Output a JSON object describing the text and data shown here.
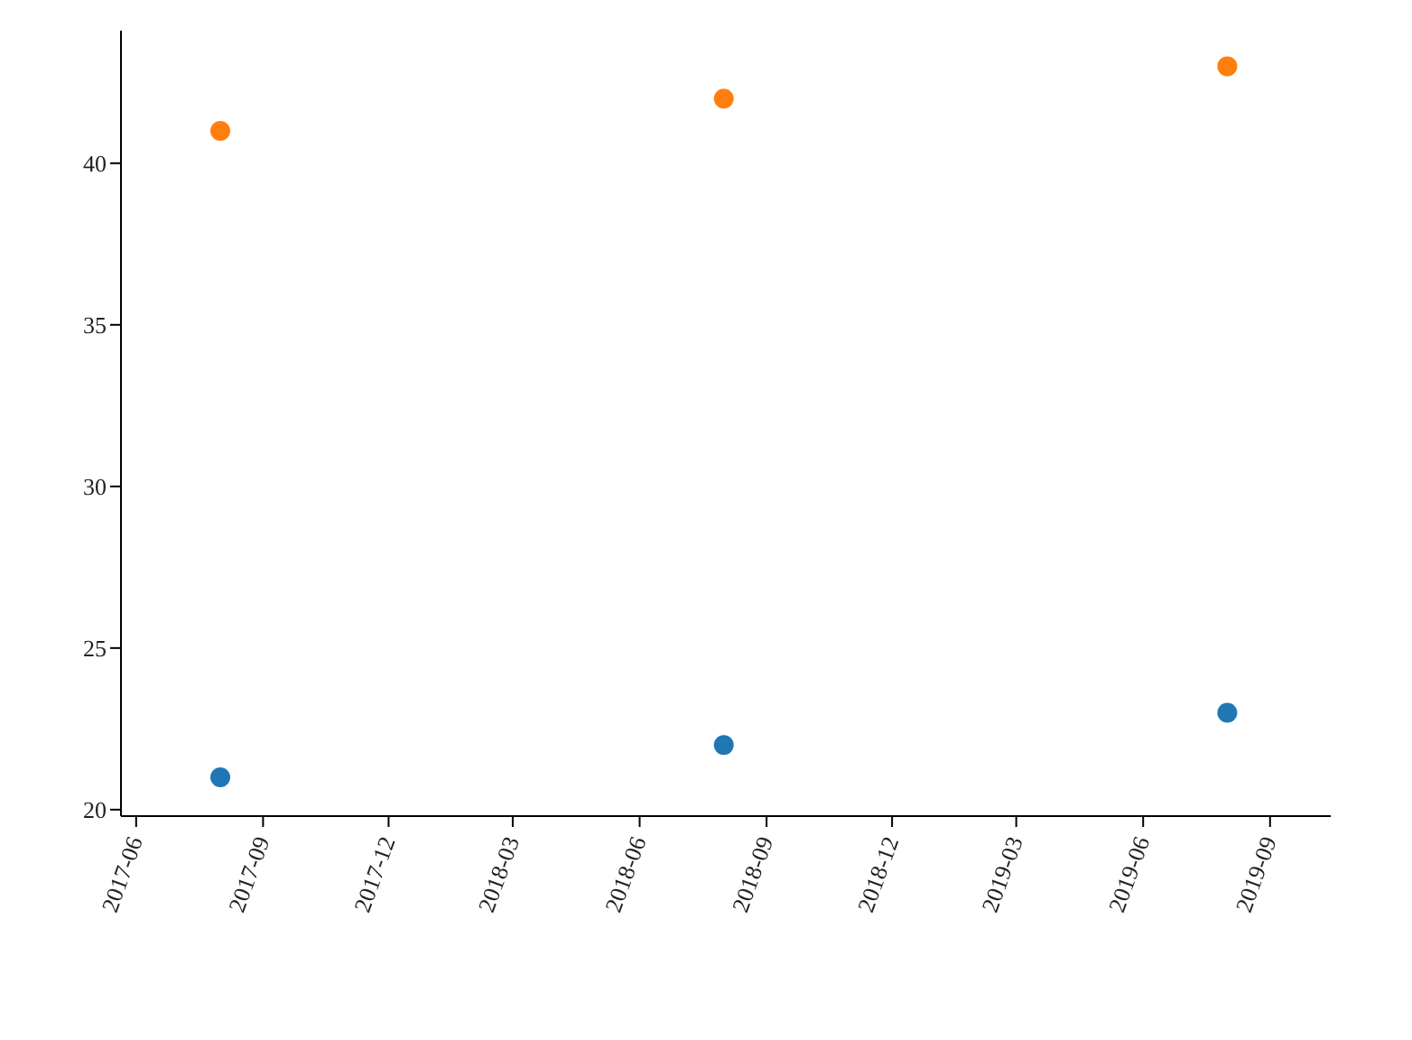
{
  "chart_data": {
    "type": "scatter",
    "x": [
      "2017-08-01",
      "2018-08-01",
      "2019-08-01"
    ],
    "series": [
      {
        "color": "#1f77b4",
        "values": [
          21,
          22,
          23
        ]
      },
      {
        "color": "#ff7f0e",
        "values": [
          41,
          42,
          43
        ]
      }
    ],
    "xlim": [
      "2017-05-21",
      "2019-10-15"
    ],
    "xticks": [
      "2017-06",
      "2017-09",
      "2017-12",
      "2018-03",
      "2018-06",
      "2018-09",
      "2018-12",
      "2019-03",
      "2019-06",
      "2019-09"
    ],
    "ylim": [
      19.8,
      44.1
    ],
    "yticks": [
      20,
      25,
      30,
      35,
      40
    ],
    "grid": false,
    "marker": "circle"
  }
}
